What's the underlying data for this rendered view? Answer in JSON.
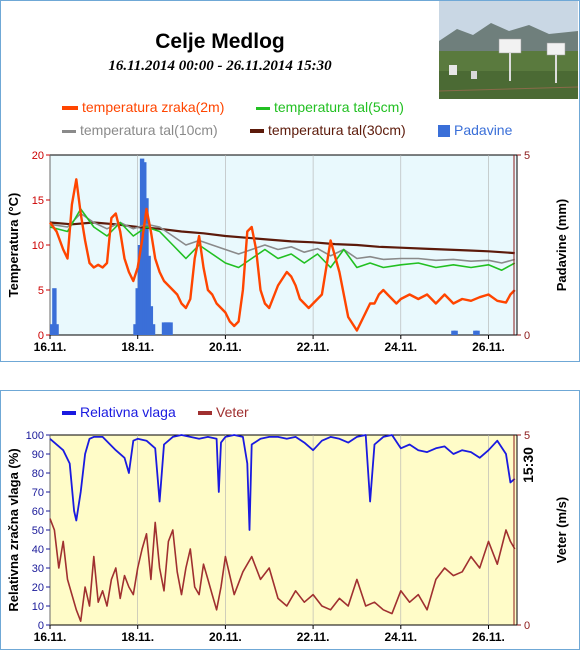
{
  "header": {
    "title": "Celje Medlog",
    "subtitle": "16.11.2014 00:00 - 26.11.2014 15:30"
  },
  "colors": {
    "air": "#ff4500",
    "soil5": "#22c022",
    "soil10": "#8a8a8a",
    "soil30": "#5c1a0a",
    "precip": "#3a6fd8",
    "humidity": "#1a1ae0",
    "wind": "#a03030",
    "bg_top": "#e9f9fd",
    "bg_bottom": "#fffcc8",
    "axis_left_top": "#cc0000",
    "axis_right": "#8b1a1a",
    "axis_left_bottom": "#1a1a9a"
  },
  "chart_data": [
    {
      "type": "line",
      "ylabel": "Temperatura (°C)",
      "y2label": "Padavine (mm)",
      "ylim": [
        0,
        20
      ],
      "y2lim": [
        0,
        5
      ],
      "yticks": [
        0,
        5,
        10,
        15,
        20
      ],
      "y2ticks": [
        0,
        5
      ],
      "xlim": [
        0,
        10.65
      ],
      "xticks": [
        0,
        2,
        4,
        6,
        8,
        10
      ],
      "xtick_labels": [
        "16.11.",
        "18.11.",
        "20.11.",
        "22.11.",
        "24.11.",
        "26.11."
      ],
      "grid": "vertical",
      "legend_position": "top",
      "series": [
        {
          "name": "temperatura zraka(2m)",
          "kind": "line",
          "x": [
            0,
            0.15,
            0.3,
            0.4,
            0.5,
            0.6,
            0.7,
            0.8,
            0.9,
            1.0,
            1.1,
            1.2,
            1.3,
            1.4,
            1.5,
            1.6,
            1.7,
            1.8,
            1.9,
            2.0,
            2.1,
            2.2,
            2.3,
            2.4,
            2.5,
            2.6,
            2.7,
            2.8,
            2.9,
            3.0,
            3.1,
            3.2,
            3.3,
            3.4,
            3.5,
            3.6,
            3.7,
            3.8,
            3.9,
            4.0,
            4.1,
            4.2,
            4.3,
            4.4,
            4.5,
            4.6,
            4.7,
            4.8,
            4.9,
            5.0,
            5.2,
            5.4,
            5.5,
            5.6,
            5.7,
            5.8,
            5.9,
            6.0,
            6.2,
            6.4,
            6.6,
            6.8,
            7.0,
            7.1,
            7.2,
            7.3,
            7.4,
            7.5,
            7.6,
            7.7,
            7.8,
            7.9,
            8.0,
            8.2,
            8.4,
            8.6,
            8.8,
            9.0,
            9.2,
            9.4,
            9.6,
            9.8,
            10.0,
            10.2,
            10.4,
            10.5,
            10.6
          ],
          "values": [
            12.5,
            11.5,
            9.5,
            8.5,
            14.5,
            17.3,
            13.5,
            10.5,
            8.0,
            7.5,
            7.8,
            7.5,
            8.0,
            13.0,
            13.5,
            11.5,
            8.5,
            7.0,
            6.0,
            7.5,
            10.5,
            14.0,
            11.5,
            8.5,
            7.0,
            6.0,
            5.5,
            5.0,
            4.5,
            3.5,
            3.0,
            4.0,
            8.5,
            11.0,
            7.5,
            5.0,
            4.5,
            3.5,
            3.0,
            2.5,
            1.5,
            1.0,
            1.5,
            5.0,
            11.5,
            12.0,
            9.5,
            5.0,
            3.5,
            3.0,
            5.5,
            7.0,
            6.5,
            5.5,
            4.0,
            3.5,
            3.0,
            3.5,
            4.5,
            10.5,
            7.0,
            2.0,
            0.5,
            1.5,
            2.5,
            3.5,
            3.5,
            4.5,
            5.0,
            4.5,
            4.0,
            3.5,
            4.0,
            4.5,
            4.0,
            4.5,
            3.5,
            4.5,
            3.5,
            4.0,
            3.8,
            4.2,
            4.5,
            3.8,
            3.6,
            4.5,
            5.0
          ]
        },
        {
          "name": "temperatura tal(5cm)",
          "kind": "line",
          "x": [
            0,
            0.4,
            0.7,
            1.0,
            1.3,
            1.6,
            1.9,
            2.2,
            2.5,
            2.8,
            3.1,
            3.4,
            3.7,
            4.0,
            4.3,
            4.6,
            4.9,
            5.2,
            5.5,
            5.8,
            6.1,
            6.4,
            6.7,
            7.0,
            7.3,
            7.6,
            8.0,
            8.4,
            8.8,
            9.2,
            9.6,
            10.0,
            10.3,
            10.6
          ],
          "values": [
            12.0,
            11.5,
            14.0,
            12.0,
            11.0,
            12.5,
            11.0,
            12.0,
            11.5,
            10.0,
            8.5,
            10.0,
            9.0,
            8.0,
            7.5,
            8.5,
            9.5,
            8.5,
            9.0,
            8.0,
            9.0,
            7.5,
            9.5,
            7.5,
            8.0,
            7.5,
            7.8,
            8.0,
            7.5,
            7.8,
            7.5,
            7.8,
            7.2,
            8.0
          ]
        },
        {
          "name": "temperatura tal(10cm)",
          "kind": "line",
          "x": [
            0,
            0.4,
            0.7,
            1.0,
            1.3,
            1.6,
            1.9,
            2.2,
            2.5,
            2.8,
            3.1,
            3.4,
            3.7,
            4.0,
            4.3,
            4.6,
            4.9,
            5.2,
            5.5,
            5.8,
            6.1,
            6.4,
            6.7,
            7.0,
            7.3,
            7.6,
            8.0,
            8.4,
            8.8,
            9.2,
            9.6,
            10.0,
            10.3,
            10.6
          ],
          "values": [
            12.3,
            12.0,
            13.5,
            12.5,
            11.8,
            12.5,
            11.8,
            12.3,
            12.0,
            11.0,
            10.0,
            10.5,
            10.0,
            9.5,
            9.0,
            9.5,
            10.0,
            9.5,
            9.8,
            9.2,
            9.6,
            8.8,
            9.5,
            8.5,
            8.7,
            8.4,
            8.5,
            8.5,
            8.3,
            8.4,
            8.2,
            8.3,
            8.0,
            8.4
          ]
        },
        {
          "name": "temperatura tal(30cm)",
          "kind": "line",
          "x": [
            0,
            0.5,
            1.0,
            1.5,
            2.0,
            2.5,
            3.0,
            3.5,
            4.0,
            4.5,
            5.0,
            5.5,
            6.0,
            6.5,
            7.0,
            7.5,
            8.0,
            8.5,
            9.0,
            9.5,
            10.0,
            10.6
          ],
          "values": [
            12.5,
            12.3,
            12.5,
            12.3,
            12.0,
            11.8,
            11.5,
            11.3,
            11.0,
            10.8,
            10.6,
            10.4,
            10.3,
            10.1,
            10.0,
            9.8,
            9.7,
            9.6,
            9.5,
            9.4,
            9.3,
            9.1
          ]
        },
        {
          "name": "Padavine",
          "kind": "bar",
          "axis": "right",
          "x": [
            0.05,
            0.1,
            0.15,
            1.95,
            2.0,
            2.05,
            2.1,
            2.15,
            2.2,
            2.25,
            2.3,
            2.35,
            2.6,
            2.65,
            2.7,
            2.75,
            9.2,
            9.25,
            9.7,
            9.75
          ],
          "values": [
            0.3,
            1.3,
            0.3,
            0.3,
            1.3,
            2.5,
            4.9,
            4.8,
            3.8,
            2.2,
            0.8,
            0.3,
            0.35,
            0.35,
            0.35,
            0.35,
            0.12,
            0.12,
            0.12,
            0.12
          ]
        }
      ]
    },
    {
      "type": "line",
      "ylabel": "Relativna zračna vlaga (%)",
      "y2label": "Veter (m/s)",
      "ylim": [
        0,
        100
      ],
      "y2lim": [
        0,
        5
      ],
      "yticks": [
        0,
        10,
        20,
        30,
        40,
        50,
        60,
        70,
        80,
        90,
        100
      ],
      "y2ticks": [
        0,
        5
      ],
      "xlim": [
        0,
        10.65
      ],
      "xticks": [
        0,
        2,
        4,
        6,
        8,
        10
      ],
      "xtick_labels": [
        "16.11.",
        "18.11.",
        "20.11.",
        "22.11.",
        "24.11.",
        "26.11."
      ],
      "annotation": "15:30",
      "grid": "vertical",
      "legend_position": "top",
      "series": [
        {
          "name": "Relativna vlaga",
          "kind": "line",
          "x": [
            0,
            0.3,
            0.45,
            0.55,
            0.6,
            0.7,
            0.8,
            0.9,
            1.0,
            1.2,
            1.5,
            1.7,
            1.8,
            1.9,
            2.0,
            2.2,
            2.4,
            2.5,
            2.6,
            2.8,
            3.0,
            3.2,
            3.4,
            3.6,
            3.8,
            3.85,
            3.9,
            4.0,
            4.2,
            4.4,
            4.5,
            4.55,
            4.6,
            4.8,
            5.0,
            5.2,
            5.4,
            5.6,
            5.8,
            6.0,
            6.2,
            6.4,
            6.6,
            6.8,
            7.0,
            7.2,
            7.3,
            7.4,
            7.6,
            7.8,
            8.0,
            8.2,
            8.4,
            8.6,
            8.8,
            9.0,
            9.2,
            9.4,
            9.6,
            9.8,
            10.0,
            10.2,
            10.4,
            10.5,
            10.6
          ],
          "values": [
            98,
            92,
            85,
            60,
            55,
            70,
            90,
            98,
            99,
            99,
            92,
            88,
            80,
            97,
            98,
            97,
            93,
            65,
            95,
            99,
            100,
            99,
            98,
            99,
            98,
            70,
            96,
            99,
            100,
            99,
            85,
            50,
            95,
            98,
            99,
            99,
            98,
            99,
            96,
            92,
            97,
            99,
            98,
            96,
            99,
            100,
            65,
            95,
            99,
            100,
            93,
            95,
            92,
            91,
            93,
            94,
            90,
            92,
            91,
            88,
            92,
            97,
            90,
            75,
            77
          ]
        },
        {
          "name": "Veter",
          "kind": "line",
          "axis": "right",
          "x": [
            0,
            0.1,
            0.2,
            0.3,
            0.4,
            0.5,
            0.6,
            0.7,
            0.8,
            0.9,
            1.0,
            1.1,
            1.2,
            1.3,
            1.4,
            1.5,
            1.6,
            1.7,
            1.8,
            1.9,
            2.0,
            2.1,
            2.2,
            2.3,
            2.4,
            2.5,
            2.6,
            2.7,
            2.8,
            2.9,
            3.0,
            3.1,
            3.2,
            3.3,
            3.4,
            3.5,
            3.6,
            3.7,
            3.8,
            3.9,
            4.0,
            4.2,
            4.4,
            4.6,
            4.8,
            5.0,
            5.2,
            5.4,
            5.6,
            5.8,
            6.0,
            6.2,
            6.4,
            6.6,
            6.8,
            7.0,
            7.2,
            7.4,
            7.6,
            7.8,
            8.0,
            8.2,
            8.4,
            8.6,
            8.8,
            9.0,
            9.2,
            9.4,
            9.6,
            9.8,
            10.0,
            10.2,
            10.4,
            10.5,
            10.6
          ],
          "values": [
            2.8,
            2.5,
            1.5,
            2.2,
            1.2,
            0.8,
            0.4,
            0.1,
            1.0,
            0.5,
            1.8,
            0.6,
            0.9,
            0.5,
            1.2,
            1.5,
            0.7,
            1.3,
            1.0,
            0.8,
            1.5,
            2.0,
            2.4,
            1.2,
            2.7,
            1.5,
            0.9,
            2.2,
            2.5,
            1.4,
            0.8,
            1.5,
            2.0,
            1.0,
            0.8,
            1.6,
            1.2,
            0.8,
            0.4,
            1.0,
            1.8,
            0.8,
            1.4,
            1.8,
            1.2,
            1.5,
            0.7,
            0.5,
            0.9,
            0.6,
            0.8,
            0.5,
            0.4,
            0.7,
            0.5,
            1.2,
            0.5,
            0.6,
            0.4,
            0.3,
            0.9,
            0.6,
            0.8,
            0.4,
            1.2,
            1.5,
            1.3,
            1.4,
            1.8,
            1.5,
            2.2,
            1.6,
            2.5,
            2.2,
            2.0
          ]
        }
      ]
    }
  ]
}
